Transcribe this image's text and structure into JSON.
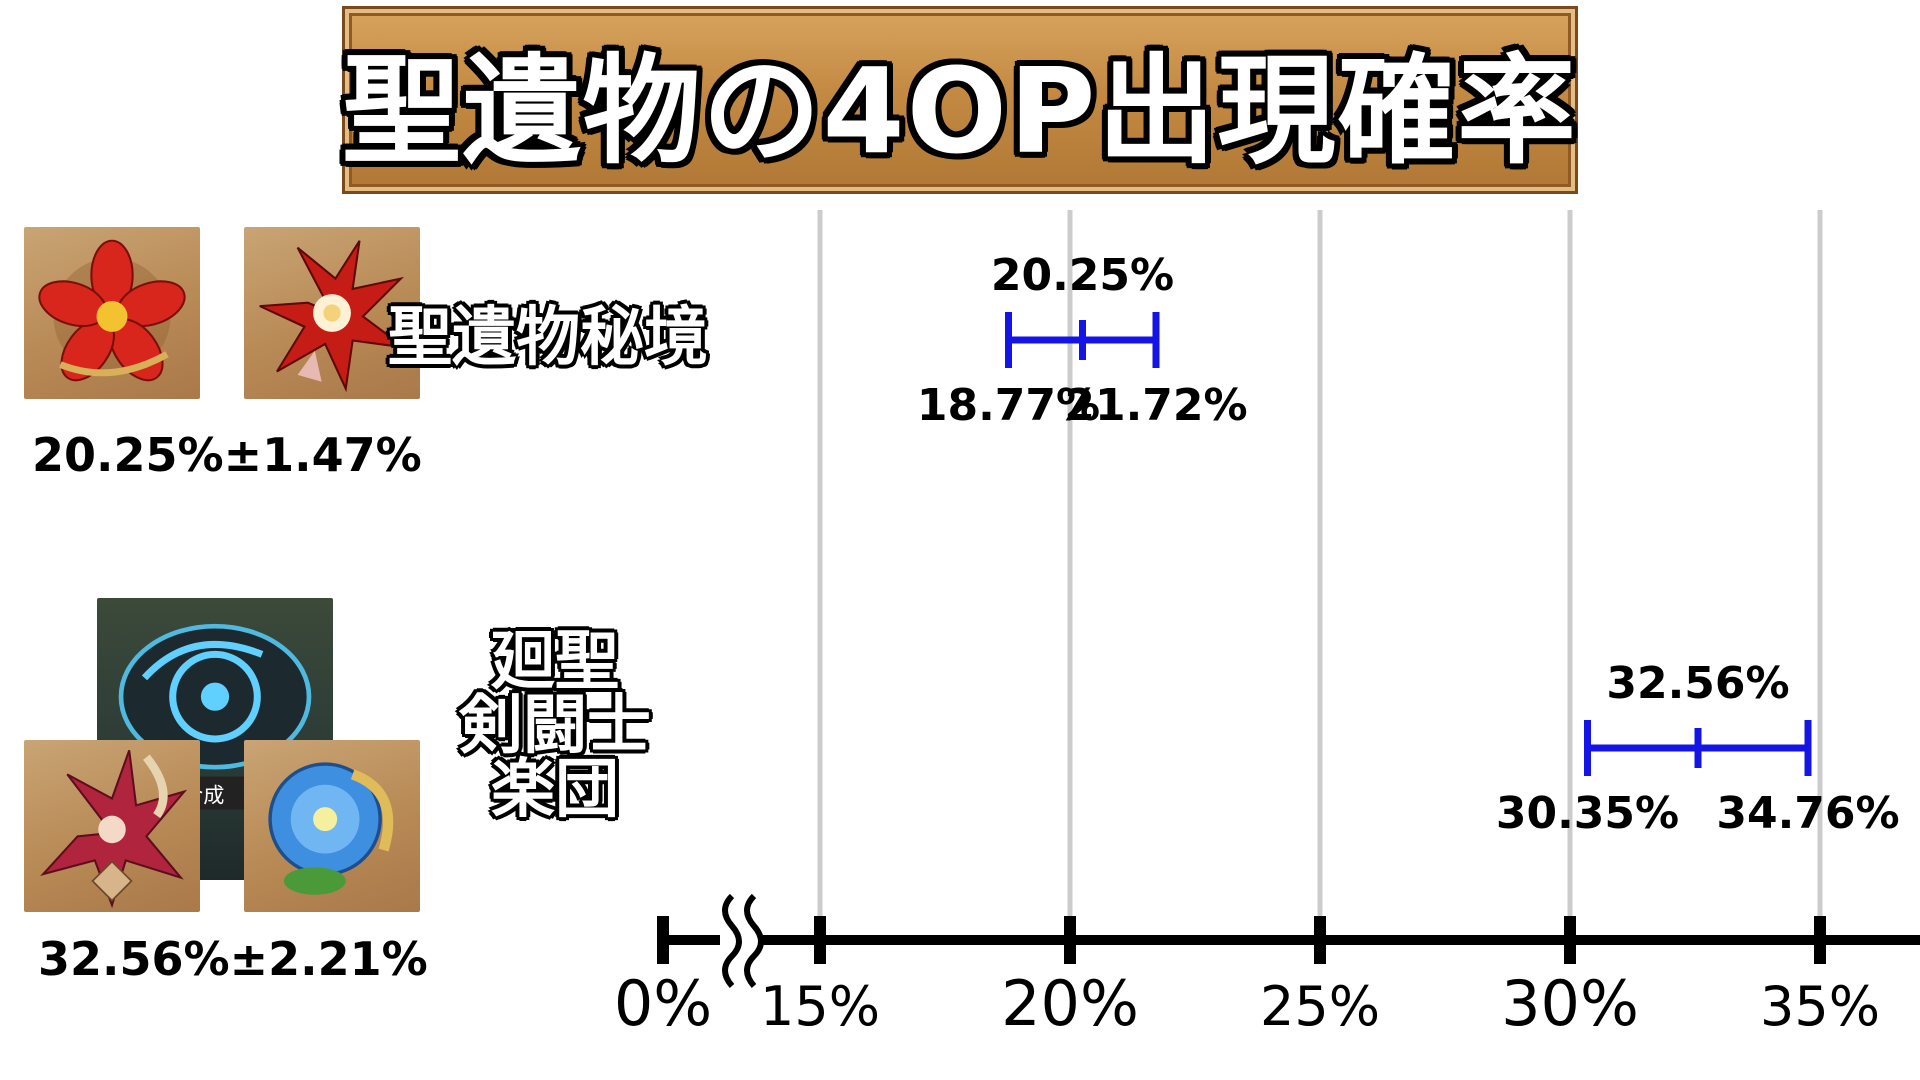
{
  "title": "聖遺物の4OP出現確率",
  "rows": [
    {
      "label_lines": [
        "聖遺物秘境"
      ],
      "summary": "20.25%±1.47%",
      "icons": [
        "red-flower-artifact-icon",
        "crimson-flower-artifact-icon"
      ]
    },
    {
      "label_lines": [
        "廻聖",
        "剣闘士",
        "楽団"
      ],
      "summary": "32.56%±2.21%",
      "icons": [
        "strongbox-icon",
        "gladiator-flower-icon",
        "wanderers-troupe-flower-icon"
      ],
      "strongbox_text": "合成"
    }
  ],
  "colors": {
    "interval": "#1414e6",
    "grid": "#cccccc",
    "axis": "#000000",
    "banner": "#c48a43"
  },
  "chart_data": {
    "type": "scatter",
    "x_unit": "%",
    "axis_break": {
      "after": "0%",
      "before": "15%"
    },
    "ticks": [
      {
        "value": 0,
        "label": "0%"
      },
      {
        "value": 15,
        "label": "15%"
      },
      {
        "value": 20,
        "label": "20%"
      },
      {
        "value": 25,
        "label": "25%"
      },
      {
        "value": 30,
        "label": "30%"
      },
      {
        "value": 35,
        "label": "35%"
      }
    ],
    "grid": true,
    "xlim": [
      15,
      35
    ],
    "series": [
      {
        "name": "聖遺物秘境",
        "center": 20.25,
        "low": 18.77,
        "high": 21.72,
        "center_label": "20.25%",
        "low_label": "18.77%",
        "high_label": "21.72%"
      },
      {
        "name": "廻聖",
        "center": 32.56,
        "low": 30.35,
        "high": 34.76,
        "center_label": "32.56%",
        "low_label": "30.35%",
        "high_label": "34.76%"
      }
    ]
  }
}
